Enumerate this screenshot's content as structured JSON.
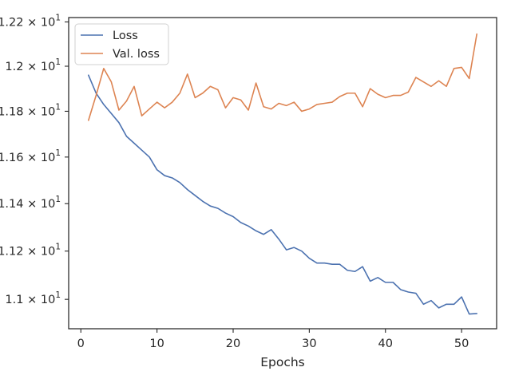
{
  "chart_data": {
    "type": "line",
    "title": "",
    "xlabel": "Epochs",
    "ylabel": "",
    "yscale": "log",
    "xlim": [
      -1.6,
      54.6
    ],
    "ylim": [
      10.88,
      12.22
    ],
    "grid": false,
    "legend_position": "top-left",
    "xticks": [
      0,
      10,
      20,
      30,
      40,
      50
    ],
    "xtick_labels": [
      "0",
      "10",
      "20",
      "30",
      "40",
      "50"
    ],
    "yticks": [
      11.0,
      11.2,
      11.4,
      11.6,
      11.8,
      12.0,
      12.2
    ],
    "ytick_labels": [
      {
        "mantissa": "1.1",
        "base": "10",
        "exp": "1"
      },
      {
        "mantissa": "1.12",
        "base": "10",
        "exp": "1"
      },
      {
        "mantissa": "1.14",
        "base": "10",
        "exp": "1"
      },
      {
        "mantissa": "1.16",
        "base": "10",
        "exp": "1"
      },
      {
        "mantissa": "1.18",
        "base": "10",
        "exp": "1"
      },
      {
        "mantissa": "1.2",
        "base": "10",
        "exp": "1"
      },
      {
        "mantissa": "1.22",
        "base": "10",
        "exp": "1"
      }
    ],
    "x": [
      1,
      2,
      3,
      4,
      5,
      6,
      7,
      8,
      9,
      10,
      11,
      12,
      13,
      14,
      15,
      16,
      17,
      18,
      19,
      20,
      21,
      22,
      23,
      24,
      25,
      26,
      27,
      28,
      29,
      30,
      31,
      32,
      33,
      34,
      35,
      36,
      37,
      38,
      39,
      40,
      41,
      42,
      43,
      44,
      45,
      46,
      47,
      48,
      49,
      50,
      51,
      52
    ],
    "series": [
      {
        "name": "Loss",
        "color": "#4c72b0",
        "values": [
          11.96,
          11.88,
          11.83,
          11.79,
          11.75,
          11.69,
          11.66,
          11.63,
          11.6,
          11.545,
          11.52,
          11.51,
          11.49,
          11.46,
          11.435,
          11.41,
          11.39,
          11.38,
          11.36,
          11.345,
          11.32,
          11.305,
          11.285,
          11.27,
          11.29,
          11.25,
          11.205,
          11.215,
          11.2,
          11.17,
          11.15,
          11.15,
          11.145,
          11.145,
          11.12,
          11.115,
          11.135,
          11.075,
          11.09,
          11.07,
          11.07,
          11.04,
          11.03,
          11.025,
          10.98,
          10.995,
          10.965,
          10.98,
          10.98,
          11.01,
          10.94,
          10.942
        ]
      },
      {
        "name": "Val. loss",
        "color": "#dd8452",
        "values": [
          11.76,
          11.87,
          11.99,
          11.93,
          11.805,
          11.845,
          11.91,
          11.78,
          11.81,
          11.84,
          11.815,
          11.84,
          11.88,
          11.965,
          11.86,
          11.88,
          11.91,
          11.895,
          11.815,
          11.86,
          11.85,
          11.805,
          11.925,
          11.82,
          11.81,
          11.835,
          11.825,
          11.84,
          11.8,
          11.81,
          11.83,
          11.835,
          11.84,
          11.865,
          11.88,
          11.88,
          11.82,
          11.9,
          11.875,
          11.86,
          11.87,
          11.87,
          11.885,
          11.95,
          11.93,
          11.91,
          11.935,
          11.91,
          11.99,
          11.995,
          11.945,
          12.145
        ]
      }
    ]
  }
}
